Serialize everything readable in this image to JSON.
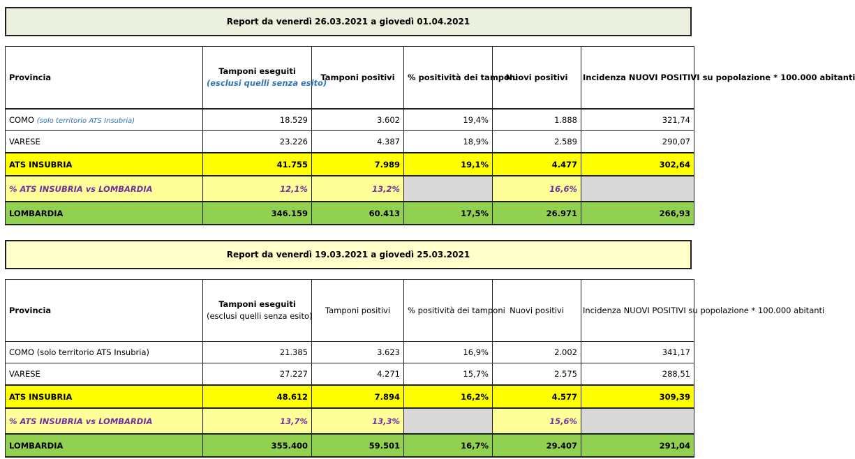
{
  "report1": {
    "banner": "Report da venerdì 26.03.2021 a giovedì 01.04.2021",
    "headers": {
      "provincia": "Provincia",
      "tamponi_eseguiti": "Tamponi eseguiti",
      "tamponi_eseguiti_sub": "(esclusi quelli senza esito)",
      "tamponi_positivi": "Tamponi positivi",
      "positivita": "% positività dei tamponi",
      "nuovi_positivi": "Nuovi positivi",
      "incidenza": "Incidenza NUOVI POSITIVI su popolazione * 100.000 abitanti"
    },
    "rows": {
      "como": {
        "label": "COMO",
        "note": "(solo territorio ATS Insubria)",
        "eseguiti": "18.529",
        "positivi": "3.602",
        "pct": "19,4%",
        "nuovi": "1.888",
        "incidenza": "321,74"
      },
      "varese": {
        "label": "VARESE",
        "eseguiti": "23.226",
        "positivi": "4.387",
        "pct": "18,9%",
        "nuovi": "2.589",
        "incidenza": "290,07"
      },
      "ats": {
        "label": "ATS INSUBRIA",
        "eseguiti": "41.755",
        "positivi": "7.989",
        "pct": "19,1%",
        "nuovi": "4.477",
        "incidenza": "302,64"
      },
      "pct_row": {
        "label": "% ATS INSUBRIA vs LOMBARDIA",
        "eseguiti": "12,1%",
        "positivi": "13,2%",
        "nuovi": "16,6%"
      },
      "lombardia": {
        "label": "LOMBARDIA",
        "eseguiti": "346.159",
        "positivi": "60.413",
        "pct": "17,5%",
        "nuovi": "26.971",
        "incidenza": "266,93"
      }
    }
  },
  "report2": {
    "banner": "Report da venerdì 19.03.2021 a giovedì 25.03.2021",
    "headers": {
      "provincia": "Provincia",
      "tamponi_eseguiti": "Tamponi eseguiti",
      "tamponi_eseguiti_sub": "(esclusi quelli senza esito)",
      "tamponi_positivi": "Tamponi positivi",
      "positivita": "% positività dei tamponi",
      "nuovi_positivi": "Nuovi positivi",
      "incidenza": "Incidenza NUOVI POSITIVI su popolazione * 100.000 abitanti"
    },
    "rows": {
      "como": {
        "label": "COMO (solo territorio ATS Insubria)",
        "eseguiti": "21.385",
        "positivi": "3.623",
        "pct": "16,9%",
        "nuovi": "2.002",
        "incidenza": "341,17"
      },
      "varese": {
        "label": "VARESE",
        "eseguiti": "27.227",
        "positivi": "4.271",
        "pct": "15,7%",
        "nuovi": "2.575",
        "incidenza": "288,51"
      },
      "ats": {
        "label": "ATS INSUBRIA",
        "eseguiti": "48.612",
        "positivi": "7.894",
        "pct": "16,2%",
        "nuovi": "4.577",
        "incidenza": "309,39"
      },
      "pct_row": {
        "label": "% ATS INSUBRIA vs LOMBARDIA",
        "eseguiti": "13,7%",
        "positivi": "13,3%",
        "nuovi": "15,6%"
      },
      "lombardia": {
        "label": "LOMBARDIA",
        "eseguiti": "355.400",
        "positivi": "59.501",
        "pct": "16,7%",
        "nuovi": "29.407",
        "incidenza": "291,04"
      }
    }
  },
  "colors": {
    "banner1_bg": "#ebf1de",
    "banner2_bg": "#ffffcc",
    "ats_row": "#ffff00",
    "pct_row": "#ffff99",
    "pct_text": "#7030a0",
    "lombardia_row": "#92d050",
    "blank_cell": "#d9d9d9",
    "note_text": "#2f75b5"
  }
}
